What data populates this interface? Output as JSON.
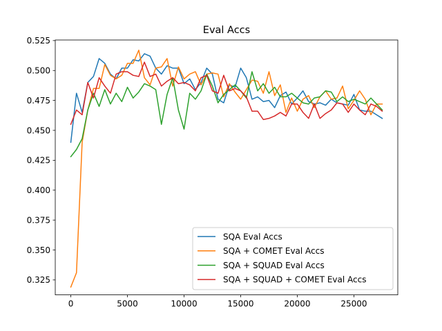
{
  "chart_data": {
    "type": "line",
    "title": "Eval Accs",
    "xlabel": "",
    "ylabel": "",
    "xlim": [
      -1375,
      28875
    ],
    "ylim": [
      0.3125,
      0.5255
    ],
    "xticks": [
      0,
      5000,
      10000,
      15000,
      20000,
      25000
    ],
    "xtick_labels": [
      "0",
      "5000",
      "10000",
      "15000",
      "20000",
      "25000"
    ],
    "yticks": [
      0.325,
      0.35,
      0.375,
      0.4,
      0.425,
      0.45,
      0.475,
      0.5,
      0.525
    ],
    "ytick_labels": [
      "0.325",
      "0.350",
      "0.375",
      "0.400",
      "0.425",
      "0.450",
      "0.475",
      "0.500",
      "0.525"
    ],
    "grid": false,
    "legend_position": "lower-right",
    "x": [
      0,
      500,
      1000,
      1500,
      2000,
      2500,
      3000,
      3500,
      4000,
      4500,
      5000,
      5500,
      6000,
      6500,
      7000,
      7500,
      8000,
      8500,
      9000,
      9500,
      10000,
      10500,
      11000,
      11500,
      12000,
      12500,
      13000,
      13500,
      14000,
      14500,
      15000,
      15500,
      16000,
      16500,
      17000,
      17500,
      18000,
      18500,
      19000,
      19500,
      20000,
      20500,
      21000,
      21500,
      22000,
      22500,
      23000,
      23500,
      24000,
      24500,
      25000,
      25500,
      26000,
      26500,
      27000,
      27500
    ],
    "series": [
      {
        "name": "SQA Eval Accs",
        "color": "#1f77b4",
        "values": [
          0.44,
          0.481,
          0.465,
          0.49,
          0.495,
          0.51,
          0.506,
          0.497,
          0.493,
          0.502,
          0.502,
          0.509,
          0.508,
          0.514,
          0.512,
          0.502,
          0.497,
          0.504,
          0.502,
          0.502,
          0.489,
          0.493,
          0.484,
          0.49,
          0.502,
          0.497,
          0.476,
          0.473,
          0.488,
          0.486,
          0.502,
          0.494,
          0.476,
          0.478,
          0.474,
          0.475,
          0.469,
          0.479,
          0.482,
          0.472,
          0.477,
          0.483,
          0.474,
          0.472,
          0.473,
          0.471,
          0.476,
          0.473,
          0.472,
          0.471,
          0.48,
          0.467,
          0.466,
          0.466,
          0.463,
          0.46
        ]
      },
      {
        "name": "SQA + COMET Eval Accs",
        "color": "#ff7f0e",
        "values": [
          0.319,
          0.331,
          0.44,
          0.467,
          0.485,
          0.485,
          0.505,
          0.496,
          0.493,
          0.496,
          0.506,
          0.506,
          0.517,
          0.494,
          0.488,
          0.502,
          0.503,
          0.51,
          0.487,
          0.503,
          0.493,
          0.497,
          0.499,
          0.488,
          0.497,
          0.498,
          0.497,
          0.478,
          0.489,
          0.482,
          0.476,
          0.484,
          0.492,
          0.491,
          0.481,
          0.499,
          0.479,
          0.488,
          0.465,
          0.477,
          0.466,
          0.476,
          0.479,
          0.469,
          0.478,
          0.483,
          0.476,
          0.477,
          0.487,
          0.468,
          0.475,
          0.483,
          0.476,
          0.463,
          0.472,
          0.472
        ]
      },
      {
        "name": "SQA + SQUAD Eval Accs",
        "color": "#2ca02c",
        "values": [
          0.428,
          0.434,
          0.443,
          0.467,
          0.481,
          0.47,
          0.484,
          0.472,
          0.481,
          0.474,
          0.486,
          0.477,
          0.482,
          0.489,
          0.487,
          0.484,
          0.455,
          0.48,
          0.494,
          0.467,
          0.451,
          0.481,
          0.476,
          0.483,
          0.497,
          0.487,
          0.473,
          0.48,
          0.484,
          0.488,
          0.483,
          0.477,
          0.499,
          0.483,
          0.489,
          0.481,
          0.486,
          0.478,
          0.478,
          0.481,
          0.477,
          0.473,
          0.472,
          0.477,
          0.478,
          0.483,
          0.482,
          0.474,
          0.478,
          0.474,
          0.476,
          0.474,
          0.472,
          0.477,
          0.472,
          0.467
        ]
      },
      {
        "name": "SQA + SQUAD + COMET Eval Accs",
        "color": "#d62728",
        "values": [
          0.455,
          0.467,
          0.463,
          0.49,
          0.477,
          0.494,
          0.487,
          0.481,
          0.497,
          0.499,
          0.499,
          0.496,
          0.495,
          0.507,
          0.495,
          0.497,
          0.487,
          0.491,
          0.494,
          0.489,
          0.49,
          0.488,
          0.483,
          0.494,
          0.496,
          0.483,
          0.481,
          0.496,
          0.483,
          0.485,
          0.483,
          0.478,
          0.466,
          0.466,
          0.459,
          0.46,
          0.462,
          0.465,
          0.462,
          0.472,
          0.472,
          0.465,
          0.46,
          0.472,
          0.46,
          0.464,
          0.467,
          0.473,
          0.472,
          0.465,
          0.472,
          0.467,
          0.463,
          0.472,
          0.47,
          0.466
        ]
      }
    ]
  }
}
